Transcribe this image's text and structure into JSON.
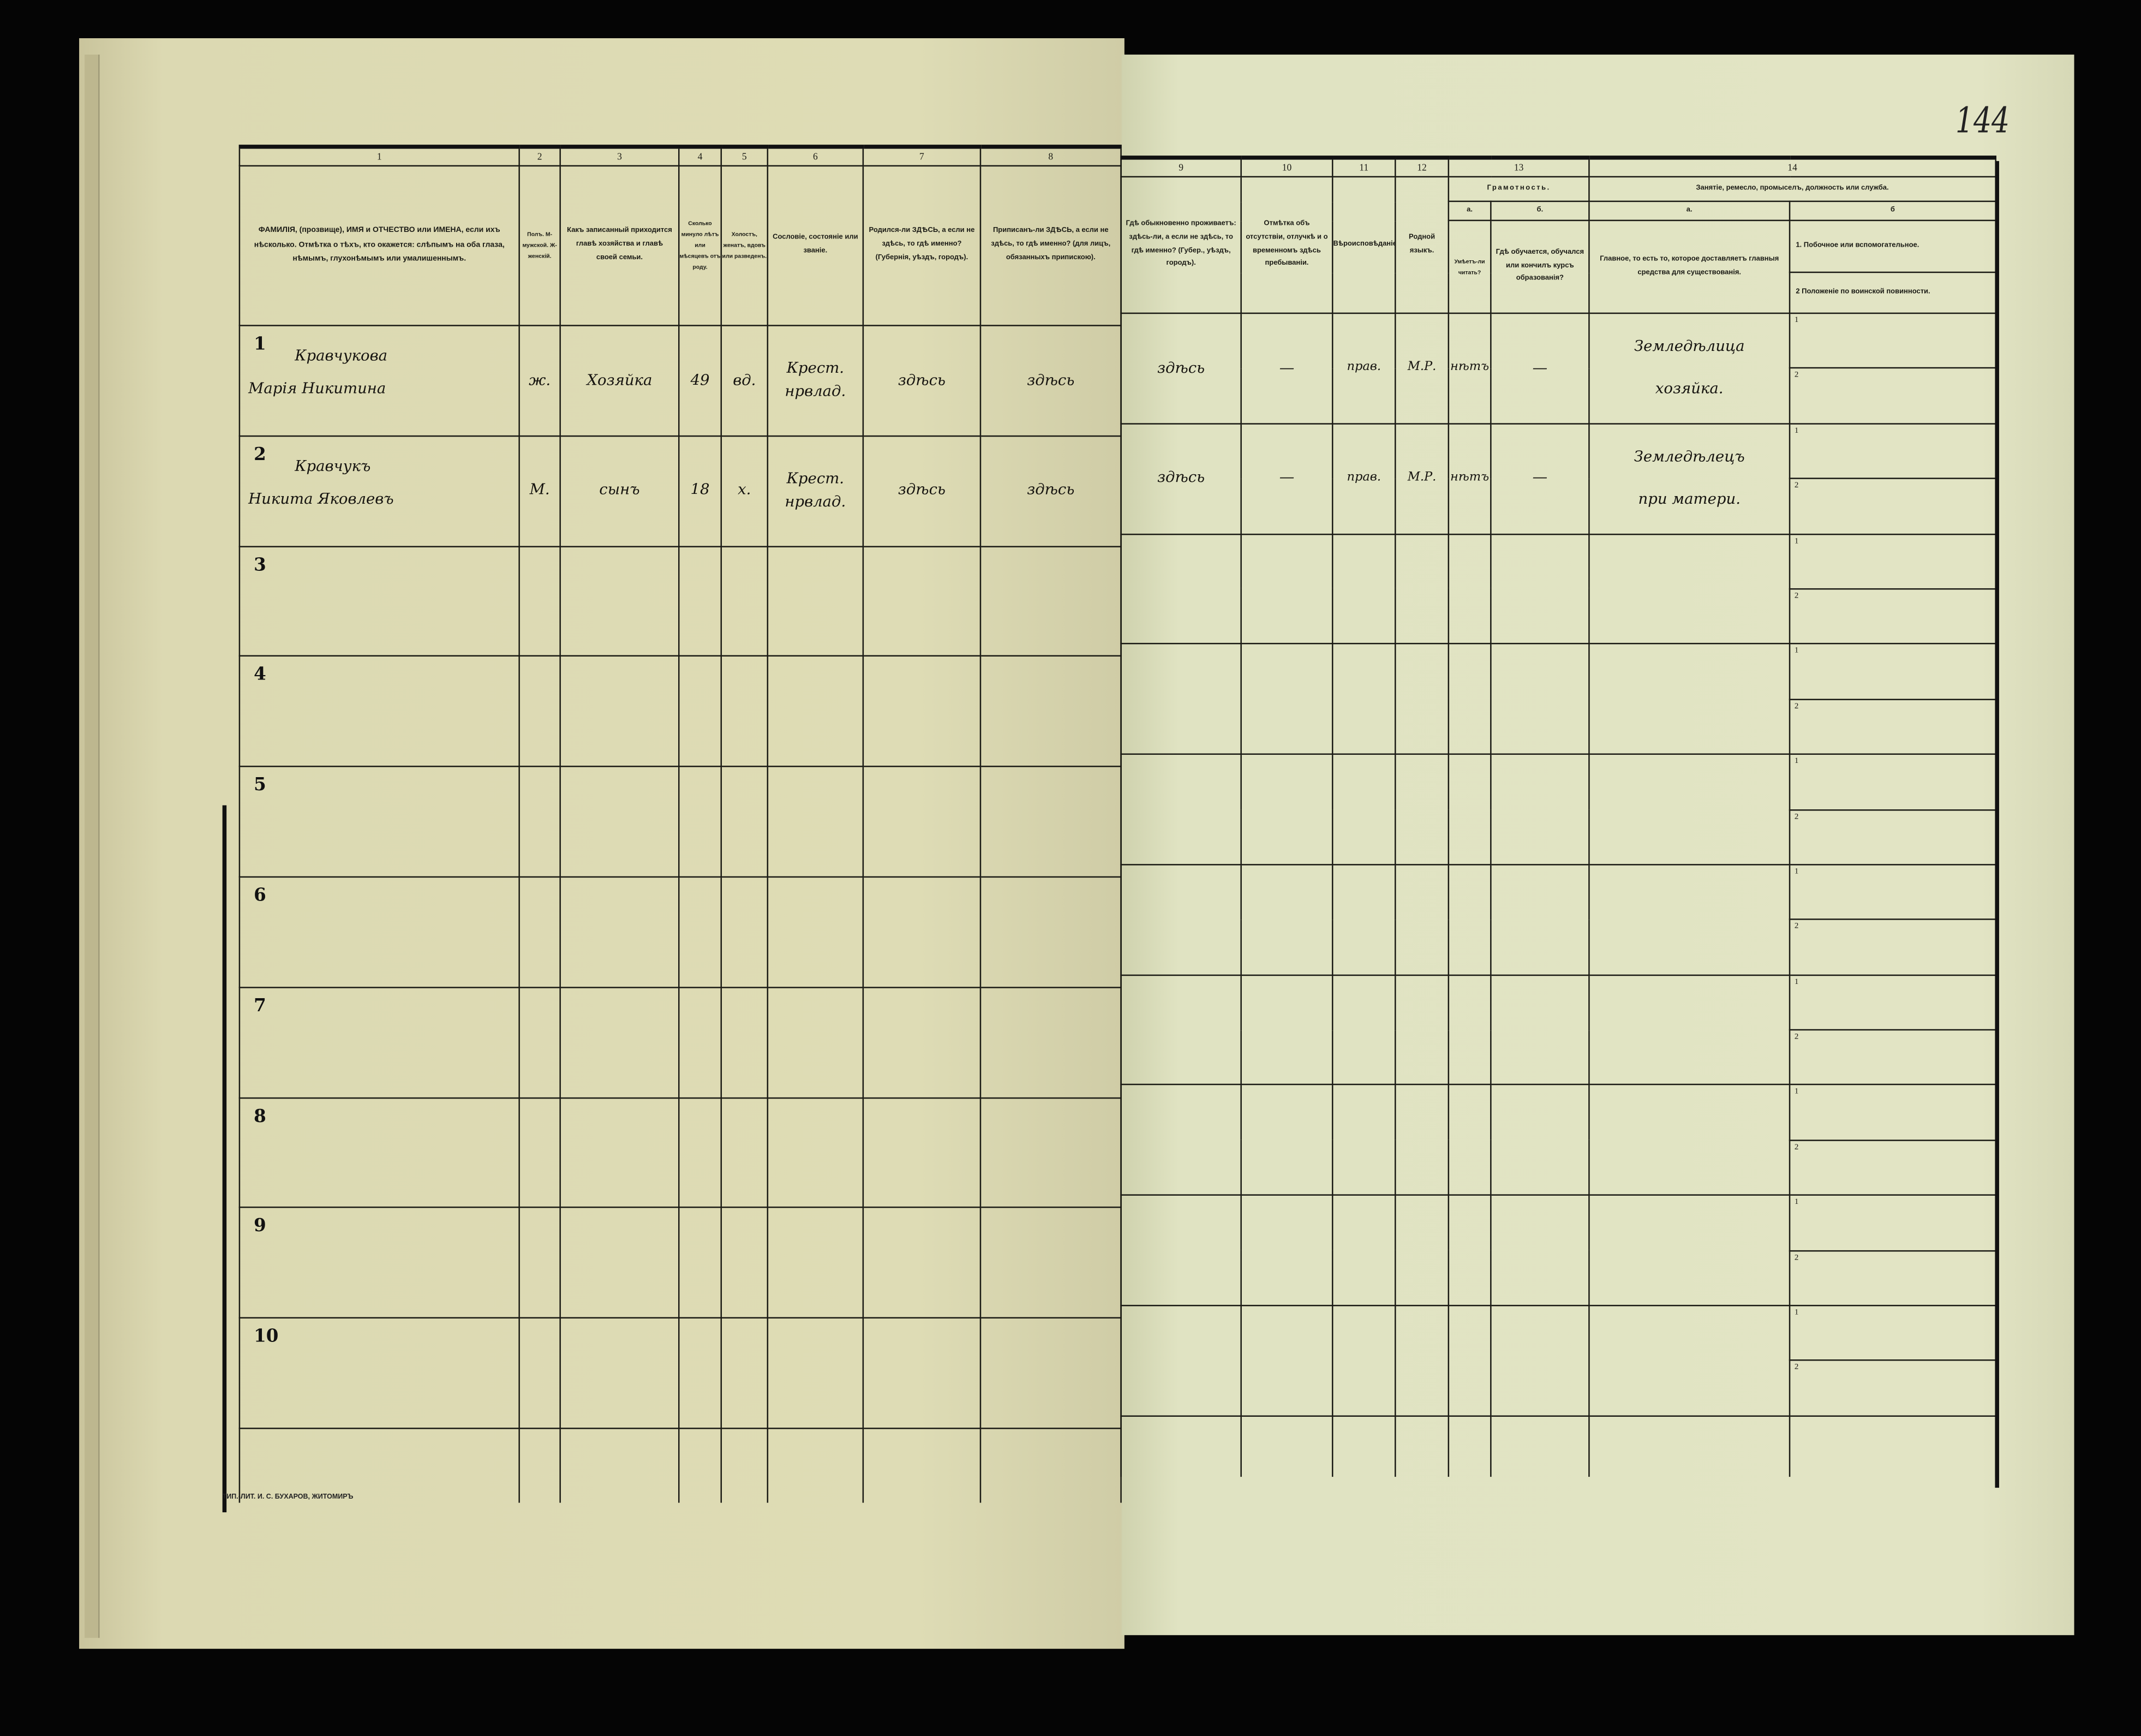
{
  "page_number": "144",
  "printer_mark": "ТИП.-ЛИТ. И. С. БУХАРОВ, ЖИТОМИРЪ",
  "left_table": {
    "column_numbers": [
      "1",
      "2",
      "3",
      "4",
      "5",
      "6",
      "7",
      "8"
    ],
    "headers": [
      "ФАМИЛІЯ, (прозвище), ИМЯ и ОТЧЕСТВО или ИМЕНА, если ихъ нѣсколько. Отмѣтка о тѣхъ, кто окажется: слѣпымъ на оба глаза, нѣмымъ, глухонѣмымъ или умалишеннымъ.",
      "Полъ. М-мужской. Ж-женскій.",
      "Какъ записанный приходится главѣ хозяйства и главѣ своей семьи.",
      "Сколько минуло лѣтъ или мѣсяцевъ отъ роду.",
      "Холостъ, женатъ, вдовъ или разведенъ.",
      "Сословіе, состояніе или званіе.",
      "Родился-ли ЗДѢСЬ, а если не здѣсь, то гдѣ именно? (Губернія, уѣздъ, городъ).",
      "Приписанъ-ли ЗДѢСЬ, а если не здѣсь, то гдѣ именно? (для лицъ, обязанныхъ припискою)."
    ],
    "row_numbers": [
      "1",
      "2",
      "3",
      "4",
      "5",
      "6",
      "7",
      "8",
      "9",
      "10"
    ]
  },
  "right_table": {
    "column_numbers": [
      "9",
      "10",
      "11",
      "12",
      "13",
      "14"
    ],
    "headers": {
      "c9": "Гдѣ обыкновенно проживаетъ: здѣсь-ли, а если не здѣсь, то гдѣ именно? (Губер., уѣздъ, городъ).",
      "c10": "Отмѣтка объ отсутствіи, отлучкѣ и о временномъ здѣсь пребываніи.",
      "c11": "Вѣроисповѣданіе.",
      "c12": "Родной языкъ.",
      "c13": "Грамотность.",
      "c13a_label": "а.",
      "c13a": "Умѣетъ-ли читать?",
      "c13b_label": "б.",
      "c13b": "Гдѣ обучается, обучался или кончилъ курсъ образованія?",
      "c14": "Занятіе, ремесло, промыселъ, должность или служба.",
      "c14a_label": "а.",
      "c14a": "Главное, то есть то, которое доставляетъ главныя средства для существованія.",
      "c14b_label": "б",
      "c14b1": "1. Побочное или вспомогательное.",
      "c14b2": "2 Положеніе по воинской повинности."
    },
    "sub_labels": [
      "1",
      "2"
    ]
  },
  "entries": [
    {
      "num": "1",
      "surname": "Кравчукова",
      "given": "Марія Никитина",
      "sex": "ж.",
      "relation": "Хозяйка",
      "age": "49",
      "marital": "вд.",
      "estate_1": "Крест.",
      "estate_2": "нрвлад.",
      "born": "здѣсь",
      "registered": "здѣсь",
      "residence": "здѣсь",
      "absence": "—",
      "religion": "прав.",
      "language": "М.Р.",
      "literate": "нѣтъ",
      "education": "—",
      "occupation_1": "Земледѣлица",
      "occupation_2": "хозяйка."
    },
    {
      "num": "2",
      "surname": "Кравчукъ",
      "given": "Никита Яковлевъ",
      "sex": "М.",
      "relation": "сынъ",
      "age": "18",
      "marital": "х.",
      "estate_1": "Крест.",
      "estate_2": "нрвлад.",
      "born": "здѣсь",
      "registered": "здѣсь",
      "residence": "здѣсь",
      "absence": "—",
      "religion": "прав.",
      "language": "М.Р.",
      "literate": "нѣтъ",
      "education": "—",
      "occupation_1": "Земледѣлецъ",
      "occupation_2": "при матери."
    }
  ]
}
